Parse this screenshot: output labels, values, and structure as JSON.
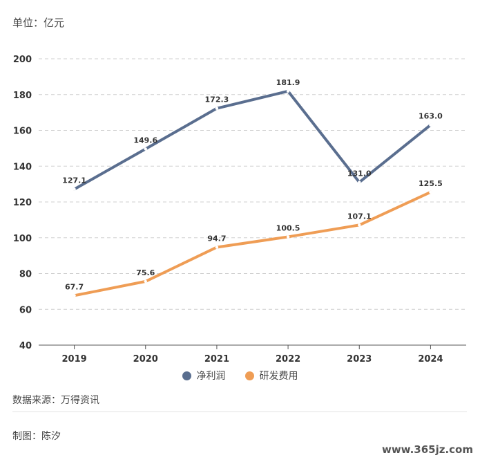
{
  "header": {
    "unit": "单位：亿元"
  },
  "chart_data": {
    "type": "line",
    "categories": [
      "2019",
      "2020",
      "2021",
      "2022",
      "2023",
      "2024"
    ],
    "ylim": [
      40,
      200
    ],
    "yticks": [
      40,
      60,
      80,
      100,
      120,
      140,
      160,
      180,
      200
    ],
    "grid": true,
    "legend_position": "bottom",
    "series": [
      {
        "name": "净利润",
        "color": "#5a6e8f",
        "values": [
          127.1,
          149.6,
          172.3,
          181.9,
          131.0,
          163.0
        ],
        "labels": [
          "127.1",
          "149.6",
          "172.3",
          "181.9",
          "131.0",
          "163.0"
        ]
      },
      {
        "name": "研发费用",
        "color": "#ef9d55",
        "values": [
          67.7,
          75.6,
          94.7,
          100.5,
          107.1,
          125.5
        ],
        "labels": [
          "67.7",
          "75.6",
          "94.7",
          "100.5",
          "107.1",
          "125.5"
        ]
      }
    ]
  },
  "footer": {
    "source": "数据来源：万得资讯",
    "author": "制图：陈汐",
    "watermark": "www.365jz.com"
  }
}
